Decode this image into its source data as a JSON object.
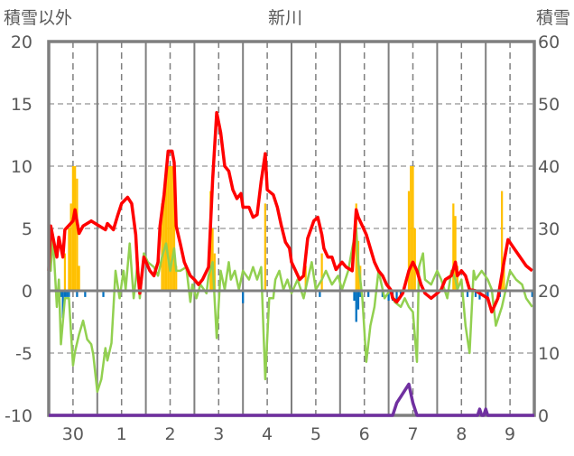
{
  "chart_data": {
    "type": "line",
    "title": "新川",
    "ylabel_left": "積雪以外",
    "ylabel_right": "積雪",
    "ylim_left": [
      -10,
      20
    ],
    "ylim_right": [
      0,
      60
    ],
    "yticks_left": [
      "20",
      "15",
      "10",
      "5",
      "0",
      "-5",
      "-10"
    ],
    "yticks_right": [
      "60",
      "50",
      "40",
      "30",
      "20",
      "10",
      "0"
    ],
    "x_unit": "hours since start of day 30",
    "xlim": [
      0,
      240
    ],
    "x_tick_labels": [
      "30",
      "1",
      "2",
      "3",
      "4",
      "5",
      "6",
      "7",
      "8",
      "9"
    ],
    "grid": true,
    "colors": {
      "red": "#ff0000",
      "green": "#92d050",
      "orange": "#ffc000",
      "blue": "#0070c0",
      "purple": "#7030a0",
      "axis": "#7f7f7f"
    },
    "series": [
      {
        "name": "red-line",
        "type": "line",
        "axis": "left",
        "color": "#ff0000",
        "points": [
          [
            0,
            1.6
          ],
          [
            1,
            5.2
          ],
          [
            4,
            2.7
          ],
          [
            5,
            4.3
          ],
          [
            7,
            2.7
          ],
          [
            8,
            4.9
          ],
          [
            12,
            5.6
          ],
          [
            13,
            6.5
          ],
          [
            15,
            4.6
          ],
          [
            17,
            5.2
          ],
          [
            21,
            5.6
          ],
          [
            25,
            5.2
          ],
          [
            28,
            4.9
          ],
          [
            29,
            5.4
          ],
          [
            32,
            4.9
          ],
          [
            34,
            6.0
          ],
          [
            36,
            7.0
          ],
          [
            39,
            7.5
          ],
          [
            41,
            7.0
          ],
          [
            43,
            4.5
          ],
          [
            44,
            1.6
          ],
          [
            45,
            -0.2
          ],
          [
            47,
            2.7
          ],
          [
            50,
            1.6
          ],
          [
            52,
            1.2
          ],
          [
            54,
            2.3
          ],
          [
            55,
            5.2
          ],
          [
            57,
            7.7
          ],
          [
            59,
            11.2
          ],
          [
            61,
            11.2
          ],
          [
            62,
            10.3
          ],
          [
            63,
            5.2
          ],
          [
            65,
            3.8
          ],
          [
            67,
            2.3
          ],
          [
            70,
            1.2
          ],
          [
            72,
            0.9
          ],
          [
            74,
            0.5
          ],
          [
            76,
            0.9
          ],
          [
            79,
            1.9
          ],
          [
            81,
            8.9
          ],
          [
            83,
            14.3
          ],
          [
            85,
            12.7
          ],
          [
            87,
            10.0
          ],
          [
            89,
            9.6
          ],
          [
            91,
            8.1
          ],
          [
            93,
            7.4
          ],
          [
            95,
            7.8
          ],
          [
            96,
            6.7
          ],
          [
            99,
            6.7
          ],
          [
            101,
            5.9
          ],
          [
            103,
            6.1
          ],
          [
            105,
            8.8
          ],
          [
            107,
            11.0
          ],
          [
            108,
            8.1
          ],
          [
            111,
            7.7
          ],
          [
            113,
            6.7
          ],
          [
            115,
            5.2
          ],
          [
            117,
            3.9
          ],
          [
            119,
            3.4
          ],
          [
            120,
            2.3
          ],
          [
            122,
            1.6
          ],
          [
            124,
            0.9
          ],
          [
            126,
            1.2
          ],
          [
            128,
            4.2
          ],
          [
            131,
            5.6
          ],
          [
            133,
            5.9
          ],
          [
            135,
            4.5
          ],
          [
            136,
            3.4
          ],
          [
            138,
            2.7
          ],
          [
            140,
            2.7
          ],
          [
            142,
            1.7
          ],
          [
            145,
            2.3
          ],
          [
            147,
            1.9
          ],
          [
            150,
            1.6
          ],
          [
            152,
            6.5
          ],
          [
            153,
            5.9
          ],
          [
            155,
            5.2
          ],
          [
            157,
            4.5
          ],
          [
            159,
            3.4
          ],
          [
            161,
            2.3
          ],
          [
            163,
            1.6
          ],
          [
            165,
            1.2
          ],
          [
            167,
            0.5
          ],
          [
            169,
            0.1
          ],
          [
            170,
            -0.6
          ],
          [
            172,
            -0.9
          ],
          [
            175,
            -0.2
          ],
          [
            178,
            1.6
          ],
          [
            180,
            2.3
          ],
          [
            182,
            1.6
          ],
          [
            184,
            0.5
          ],
          [
            186,
            -0.2
          ],
          [
            189,
            -0.6
          ],
          [
            192,
            -0.2
          ],
          [
            194,
            0.1
          ],
          [
            196,
            0.9
          ],
          [
            199,
            1.2
          ],
          [
            201,
            2.3
          ],
          [
            202,
            1.2
          ],
          [
            204,
            1.6
          ],
          [
            206,
            1.2
          ],
          [
            208,
            0.1
          ],
          [
            211,
            0
          ],
          [
            213,
            -0.2
          ],
          [
            217,
            -0.6
          ],
          [
            219,
            -1.7
          ],
          [
            222,
            -0.6
          ],
          [
            225,
            2.3
          ],
          [
            227,
            4.1
          ],
          [
            230,
            3.4
          ],
          [
            233,
            2.7
          ],
          [
            236,
            2.0
          ],
          [
            239,
            1.6
          ]
        ]
      },
      {
        "name": "green-line",
        "type": "line",
        "axis": "left",
        "color": "#92d050",
        "points": [
          [
            0,
            2.3
          ],
          [
            1,
            1.6
          ],
          [
            2,
            4.5
          ],
          [
            4,
            -1.3
          ],
          [
            5,
            0.9
          ],
          [
            6,
            -4.3
          ],
          [
            8,
            -0.6
          ],
          [
            10,
            -0.6
          ],
          [
            12,
            -6.0
          ],
          [
            13,
            -4.9
          ],
          [
            15,
            -3.5
          ],
          [
            17,
            -2.4
          ],
          [
            19,
            -3.9
          ],
          [
            21,
            -4.3
          ],
          [
            22,
            -5.1
          ],
          [
            24,
            -8.1
          ],
          [
            26,
            -7.1
          ],
          [
            28,
            -4.6
          ],
          [
            29,
            -5.6
          ],
          [
            31,
            -4.2
          ],
          [
            33,
            1.6
          ],
          [
            35,
            -0.6
          ],
          [
            37,
            1.6
          ],
          [
            38,
            0.1
          ],
          [
            40,
            3.8
          ],
          [
            42,
            -0.6
          ],
          [
            44,
            2.3
          ],
          [
            45,
            -0.6
          ],
          [
            47,
            3.0
          ],
          [
            49,
            2.3
          ],
          [
            52,
            1.9
          ],
          [
            54,
            1.2
          ],
          [
            56,
            2.7
          ],
          [
            58,
            3.8
          ],
          [
            60,
            1.6
          ],
          [
            62,
            3.4
          ],
          [
            63,
            1.6
          ],
          [
            65,
            1.6
          ],
          [
            68,
            1.9
          ],
          [
            70,
            -0.9
          ],
          [
            71,
            0.5
          ],
          [
            73,
            -0.6
          ],
          [
            75,
            0.5
          ],
          [
            78,
            -0.2
          ],
          [
            79,
            1.2
          ],
          [
            81,
            2.3
          ],
          [
            83,
            -3.8
          ],
          [
            85,
            1.6
          ],
          [
            87,
            0.1
          ],
          [
            89,
            2.3
          ],
          [
            90,
            0.9
          ],
          [
            92,
            1.6
          ],
          [
            94,
            0.1
          ],
          [
            96,
            1.6
          ],
          [
            99,
            0.9
          ],
          [
            101,
            1.9
          ],
          [
            103,
            0.9
          ],
          [
            105,
            1.9
          ],
          [
            107,
            -7.1
          ],
          [
            109,
            -0.6
          ],
          [
            111,
            -0.6
          ],
          [
            112,
            0.9
          ],
          [
            114,
            1.6
          ],
          [
            116,
            0.1
          ],
          [
            118,
            0.9
          ],
          [
            120,
            -0.2
          ],
          [
            123,
            0.9
          ],
          [
            126,
            -0.6
          ],
          [
            128,
            0.9
          ],
          [
            130,
            2.3
          ],
          [
            132,
            0.1
          ],
          [
            135,
            0.9
          ],
          [
            137,
            1.6
          ],
          [
            140,
            0.5
          ],
          [
            143,
            1.2
          ],
          [
            145,
            0.1
          ],
          [
            148,
            1.6
          ],
          [
            150,
            3.4
          ],
          [
            152,
            5.0
          ],
          [
            153,
            2.3
          ],
          [
            155,
            -0.6
          ],
          [
            157,
            -5.7
          ],
          [
            159,
            -2.8
          ],
          [
            161,
            -1.3
          ],
          [
            163,
            1.6
          ],
          [
            166,
            -0.6
          ],
          [
            169,
            0.1
          ],
          [
            171,
            -0.9
          ],
          [
            174,
            -1.3
          ],
          [
            176,
            -0.6
          ],
          [
            178,
            -1.3
          ],
          [
            180,
            -1.7
          ],
          [
            182,
            -5.7
          ],
          [
            183,
            1.9
          ],
          [
            185,
            3.0
          ],
          [
            186,
            0.9
          ],
          [
            189,
            0.5
          ],
          [
            192,
            1.6
          ],
          [
            194,
            0.9
          ],
          [
            197,
            -0.6
          ],
          [
            199,
            1.6
          ],
          [
            201,
            0.9
          ],
          [
            202,
            0.1
          ],
          [
            204,
            0.9
          ],
          [
            206,
            -2.8
          ],
          [
            208,
            -5.0
          ],
          [
            210,
            1.6
          ],
          [
            211,
            0.9
          ],
          [
            214,
            1.6
          ],
          [
            217,
            0.9
          ],
          [
            219,
            0.1
          ],
          [
            221,
            -2.8
          ],
          [
            224,
            -1.3
          ],
          [
            227,
            0.9
          ],
          [
            228,
            1.6
          ],
          [
            231,
            0.9
          ],
          [
            234,
            0.5
          ],
          [
            236,
            -0.6
          ],
          [
            239,
            -1.3
          ]
        ]
      },
      {
        "name": "orange-bars",
        "type": "bar",
        "axis": "left",
        "color": "#ffc000",
        "points": [
          [
            8,
            3
          ],
          [
            10,
            5
          ],
          [
            11,
            7
          ],
          [
            12,
            10
          ],
          [
            13,
            10
          ],
          [
            14,
            9
          ],
          [
            15,
            2
          ],
          [
            56,
            7
          ],
          [
            57,
            8
          ],
          [
            58,
            10
          ],
          [
            59,
            10
          ],
          [
            60,
            10
          ],
          [
            61,
            10
          ],
          [
            62,
            10
          ],
          [
            63,
            2
          ],
          [
            80,
            8
          ],
          [
            81,
            5
          ],
          [
            82,
            3
          ],
          [
            107,
            7
          ],
          [
            127,
            2
          ],
          [
            135,
            3
          ],
          [
            152,
            7
          ],
          [
            153,
            4
          ],
          [
            154,
            2
          ],
          [
            178,
            8
          ],
          [
            179,
            10
          ],
          [
            180,
            10
          ],
          [
            181,
            5
          ],
          [
            200,
            7
          ],
          [
            201,
            6
          ],
          [
            202,
            2
          ],
          [
            224,
            8
          ],
          [
            225,
            2
          ]
        ]
      },
      {
        "name": "blue-bars",
        "type": "bar",
        "axis": "left",
        "color": "#0070c0",
        "points": [
          [
            4,
            -0.5
          ],
          [
            5,
            -0.5
          ],
          [
            6,
            -0.5
          ],
          [
            7,
            -2.2
          ],
          [
            8,
            -0.5
          ],
          [
            9,
            -0.5
          ],
          [
            10,
            -0.5
          ],
          [
            14,
            -0.5
          ],
          [
            18,
            -0.5
          ],
          [
            27,
            -0.5
          ],
          [
            96,
            -1
          ],
          [
            134,
            -0.5
          ],
          [
            151,
            -0.8
          ],
          [
            152,
            -2.5
          ],
          [
            153,
            -1.5
          ],
          [
            154,
            -0.5
          ],
          [
            158,
            -0.5
          ],
          [
            165,
            -0.5
          ],
          [
            168,
            -0.8
          ],
          [
            170,
            -0.8
          ],
          [
            172,
            -0.8
          ],
          [
            174,
            -0.5
          ],
          [
            207,
            -0.5
          ],
          [
            211,
            -0.5
          ],
          [
            213,
            -0.7
          ],
          [
            217,
            -0.5
          ],
          [
            223,
            -0.5
          ],
          [
            239,
            -0.5
          ]
        ]
      },
      {
        "name": "purple-line",
        "type": "line",
        "axis": "right",
        "color": "#7030a0",
        "points": [
          [
            0,
            0
          ],
          [
            170,
            0
          ],
          [
            172,
            2
          ],
          [
            174,
            3
          ],
          [
            176,
            4
          ],
          [
            178,
            5
          ],
          [
            180,
            2
          ],
          [
            182,
            0
          ],
          [
            212,
            0
          ],
          [
            213,
            1
          ],
          [
            214,
            0
          ],
          [
            215,
            0
          ],
          [
            216,
            1
          ],
          [
            217,
            0
          ],
          [
            240,
            0
          ]
        ]
      }
    ]
  }
}
